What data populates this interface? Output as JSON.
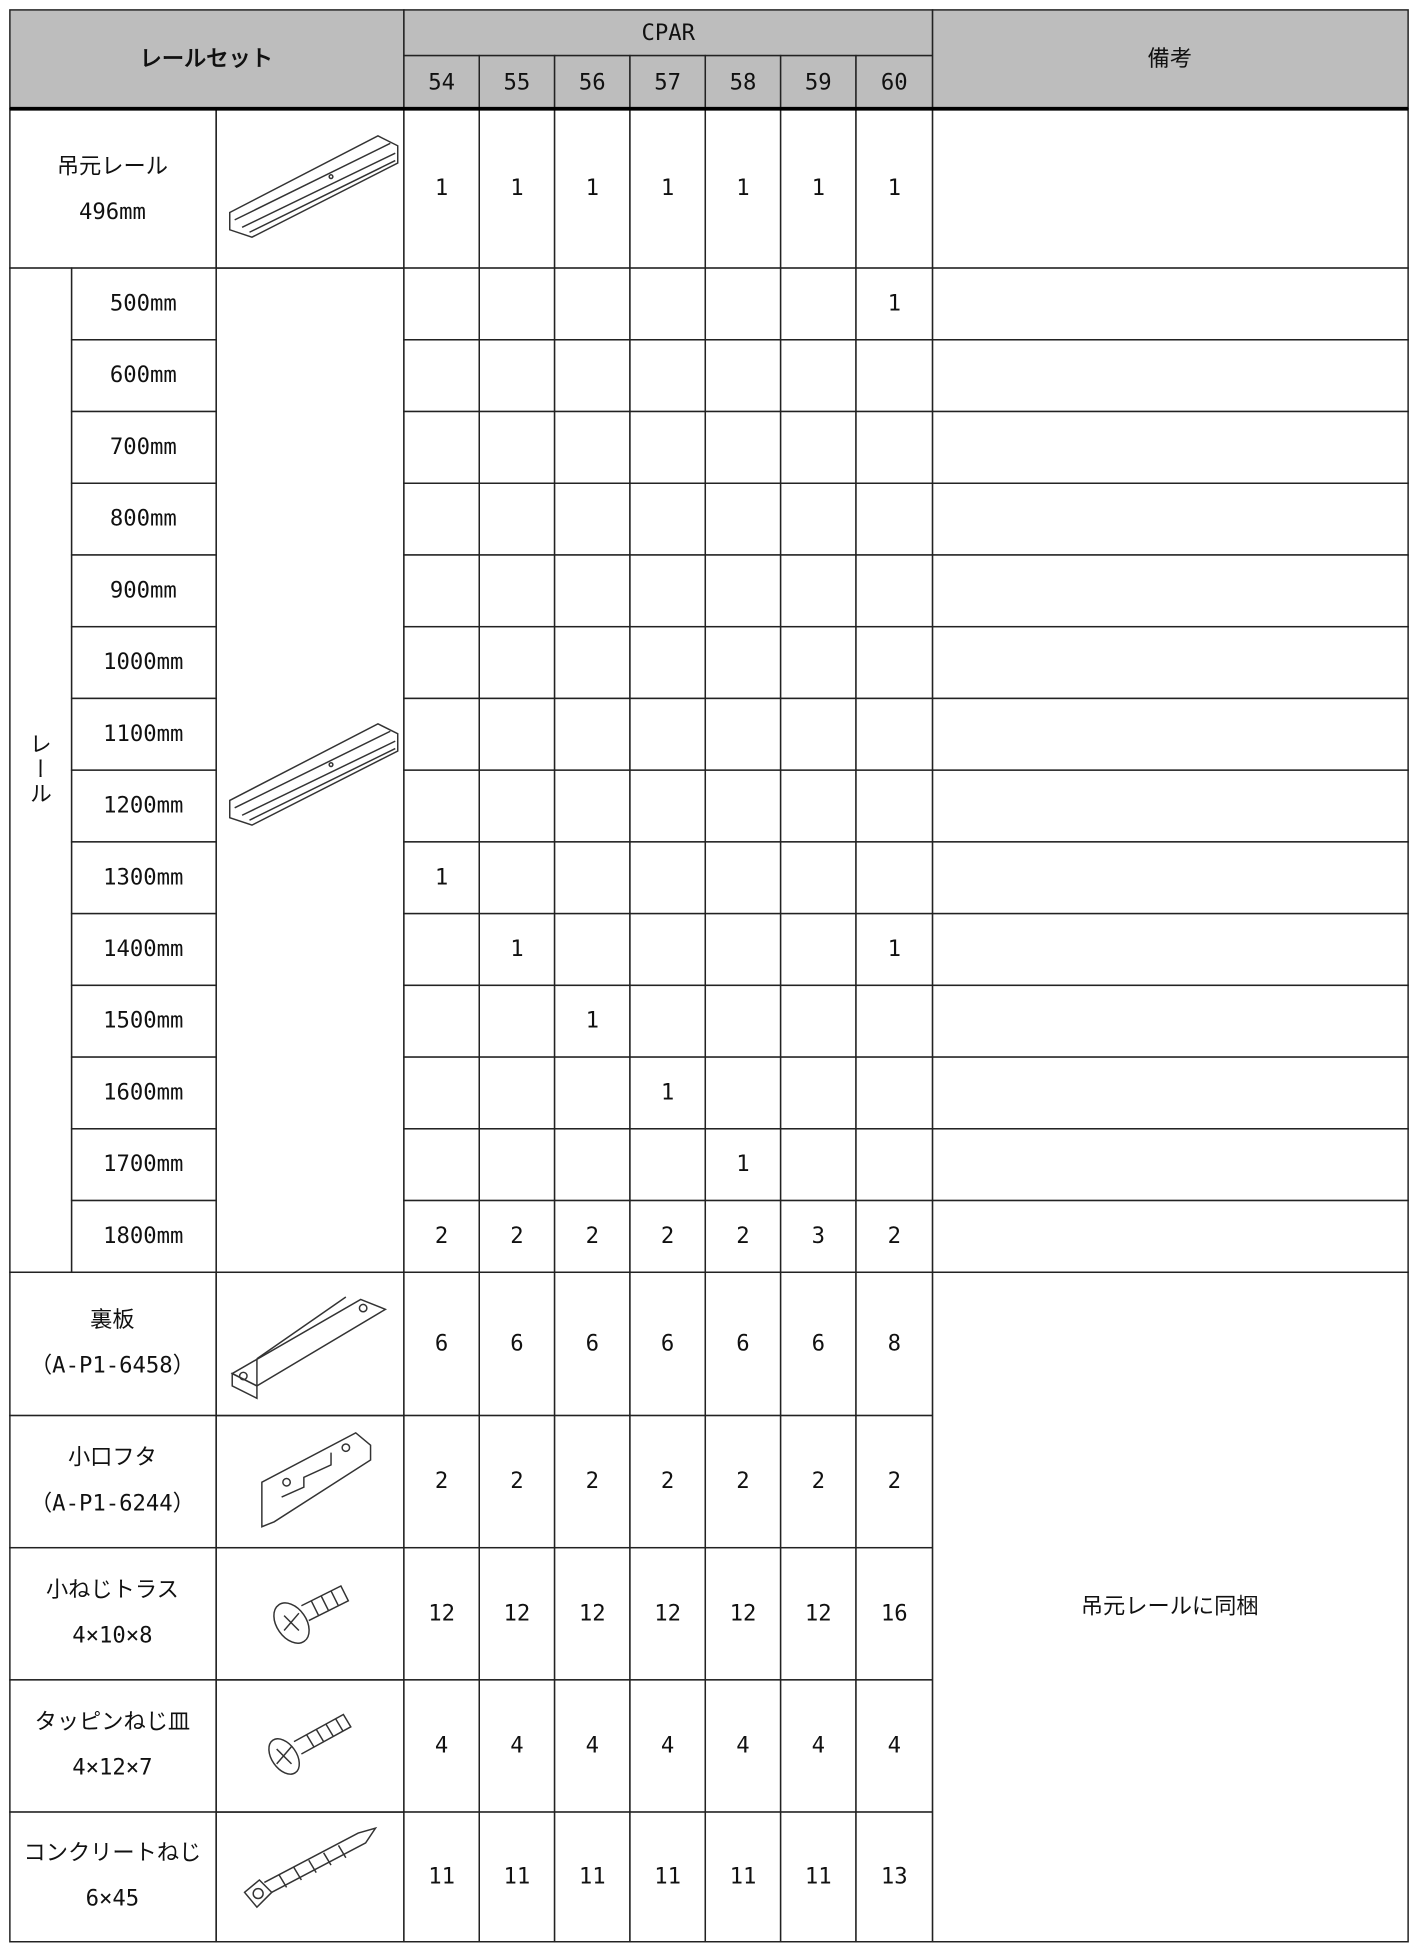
{
  "header": {
    "title": "レールセット",
    "group": "CPAR",
    "columns": [
      54,
      55,
      56,
      57,
      58,
      59,
      60
    ],
    "remarks": "備考"
  },
  "hanger_rail": {
    "name": "吊元レール",
    "spec": "496mm",
    "values": [
      1,
      1,
      1,
      1,
      1,
      1,
      1
    ]
  },
  "rails": {
    "label": "レール",
    "rows": [
      {
        "length": "500mm",
        "values": [
          null,
          null,
          null,
          null,
          null,
          null,
          1
        ]
      },
      {
        "length": "600mm",
        "values": [
          null,
          null,
          null,
          null,
          null,
          null,
          null
        ]
      },
      {
        "length": "700mm",
        "values": [
          null,
          null,
          null,
          null,
          null,
          null,
          null
        ]
      },
      {
        "length": "800mm",
        "values": [
          null,
          null,
          null,
          null,
          null,
          null,
          null
        ]
      },
      {
        "length": "900mm",
        "values": [
          null,
          null,
          null,
          null,
          null,
          null,
          null
        ]
      },
      {
        "length": "1000mm",
        "values": [
          null,
          null,
          null,
          null,
          null,
          null,
          null
        ]
      },
      {
        "length": "1100mm",
        "values": [
          null,
          null,
          null,
          null,
          null,
          null,
          null
        ]
      },
      {
        "length": "1200mm",
        "values": [
          null,
          null,
          null,
          null,
          null,
          null,
          null
        ]
      },
      {
        "length": "1300mm",
        "values": [
          1,
          null,
          null,
          null,
          null,
          null,
          null
        ]
      },
      {
        "length": "1400mm",
        "values": [
          null,
          1,
          null,
          null,
          null,
          null,
          1
        ]
      },
      {
        "length": "1500mm",
        "values": [
          null,
          null,
          1,
          null,
          null,
          null,
          null
        ]
      },
      {
        "length": "1600mm",
        "values": [
          null,
          null,
          null,
          1,
          null,
          null,
          null
        ]
      },
      {
        "length": "1700mm",
        "values": [
          null,
          null,
          null,
          null,
          1,
          null,
          null
        ]
      },
      {
        "length": "1800mm",
        "values": [
          2,
          2,
          2,
          2,
          2,
          3,
          2
        ]
      }
    ]
  },
  "parts": {
    "remarks": "吊元レールに同梱",
    "rows": [
      {
        "name": "裏板",
        "spec": "（A-P1-6458）",
        "values": [
          6,
          6,
          6,
          6,
          6,
          6,
          8
        ]
      },
      {
        "name": "小口フタ",
        "spec": "（A-P1-6244）",
        "values": [
          2,
          2,
          2,
          2,
          2,
          2,
          2
        ]
      },
      {
        "name": "小ねじトラス",
        "spec": "4×10×8",
        "values": [
          12,
          12,
          12,
          12,
          12,
          12,
          16
        ]
      },
      {
        "name": "タッピンねじ皿",
        "spec": "4×12×7",
        "values": [
          4,
          4,
          4,
          4,
          4,
          4,
          4
        ]
      },
      {
        "name": "コンクリートねじ",
        "spec": "6×45",
        "values": [
          11,
          11,
          11,
          11,
          11,
          11,
          13
        ]
      }
    ]
  }
}
